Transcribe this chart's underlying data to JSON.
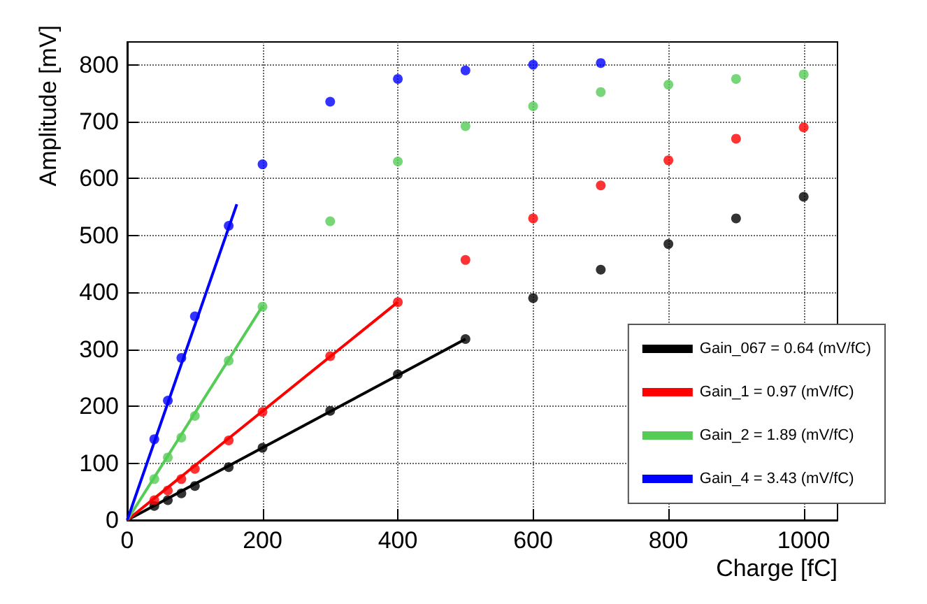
{
  "chart_data": {
    "type": "scatter",
    "xlabel": "Charge [fC]",
    "ylabel": "Amplitude [mV]",
    "xlim": [
      0,
      1050
    ],
    "ylim": [
      0,
      840
    ],
    "xticks": [
      0,
      200,
      400,
      600,
      800,
      1000
    ],
    "yticks": [
      0,
      100,
      200,
      300,
      400,
      500,
      600,
      700,
      800
    ],
    "grid": true,
    "legend": "bottom right",
    "marker": "circle",
    "series": [
      {
        "color": "#000000",
        "x": [
          40,
          60,
          80,
          100,
          150,
          200,
          300,
          400,
          500,
          600,
          700,
          800,
          900,
          1000
        ],
        "values": [
          25,
          35,
          47,
          60,
          93,
          127,
          192,
          256,
          318,
          390,
          440,
          485,
          530,
          568
        ]
      },
      {
        "color": "#ff0000",
        "x": [
          40,
          60,
          80,
          100,
          150,
          200,
          300,
          400,
          500,
          600,
          700,
          800,
          900,
          1000
        ],
        "values": [
          35,
          52,
          72,
          90,
          140,
          190,
          288,
          383,
          457,
          530,
          588,
          632,
          670,
          690
        ]
      },
      {
        "color": "#55cc55",
        "x": [
          40,
          60,
          80,
          100,
          150,
          200,
          300,
          400,
          500,
          600,
          700,
          800,
          900,
          1000
        ],
        "values": [
          72,
          110,
          145,
          183,
          280,
          375,
          525,
          630,
          692,
          727,
          752,
          765,
          775,
          783
        ]
      },
      {
        "color": "#0000ff",
        "x": [
          40,
          60,
          80,
          100,
          150,
          200,
          300,
          400,
          500,
          600,
          700
        ],
        "values": [
          142,
          210,
          285,
          358,
          517,
          625,
          735,
          775,
          790,
          800,
          803
        ]
      },
      {
        "type": "line",
        "marker": "none",
        "name": "Gain_067 = 0.64 (mV/fC)",
        "color": "#000000",
        "x": [
          0,
          500
        ],
        "values": [
          0,
          318
        ]
      },
      {
        "type": "line",
        "marker": "none",
        "name": "Gain_1 = 0.97 (mV/fC)",
        "color": "#ff0000",
        "x": [
          0,
          400
        ],
        "values": [
          0,
          383
        ]
      },
      {
        "type": "line",
        "marker": "none",
        "name": "Gain_2 = 1.89 (mV/fC)",
        "color": "#55cc55",
        "x": [
          0,
          200
        ],
        "values": [
          0,
          376
        ]
      },
      {
        "type": "line",
        "marker": "none",
        "name": "Gain_4 = 3.43 (mV/fC)",
        "color": "#0000ff",
        "x": [
          0,
          162
        ],
        "values": [
          0,
          555
        ]
      }
    ]
  }
}
